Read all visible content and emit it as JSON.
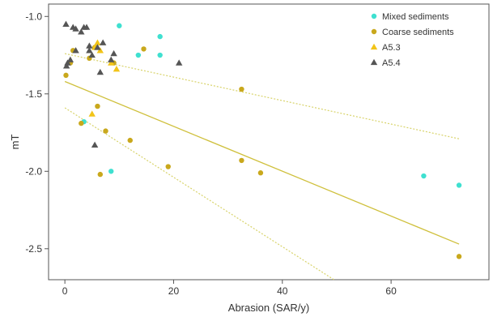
{
  "chart_data": {
    "type": "scatter",
    "title": "",
    "xlabel": "Abrasion (SAR/y)",
    "ylabel": "mT",
    "xlim": [
      -3,
      78
    ],
    "ylim": [
      -2.7,
      -0.92
    ],
    "x_ticks": [
      0,
      20,
      40,
      60
    ],
    "y_ticks": [
      -1.0,
      -1.5,
      -2.0,
      -2.5
    ],
    "x_tick_labels": [
      "0",
      "20",
      "40",
      "60"
    ],
    "y_tick_labels": [
      "-1.0",
      "-1.5",
      "-2.0",
      "-2.5"
    ],
    "grid": false,
    "legend_position": "top-right",
    "series": [
      {
        "name": "Mixed sediments",
        "marker": "circle",
        "color": "#3fe0d0",
        "points": [
          [
            10.0,
            -1.06
          ],
          [
            13.5,
            -1.25
          ],
          [
            17.5,
            -1.13
          ],
          [
            17.5,
            -1.25
          ],
          [
            3.5,
            -1.68
          ],
          [
            8.5,
            -2.0
          ],
          [
            66.0,
            -2.03
          ],
          [
            72.5,
            -2.09
          ]
        ]
      },
      {
        "name": "Coarse sediments",
        "marker": "circle",
        "color": "#c9a81c",
        "points": [
          [
            0.2,
            -1.38
          ],
          [
            1.0,
            -1.3
          ],
          [
            1.5,
            -1.22
          ],
          [
            3.0,
            -1.69
          ],
          [
            4.5,
            -1.27
          ],
          [
            5.5,
            -1.2
          ],
          [
            6.0,
            -1.58
          ],
          [
            6.5,
            -2.02
          ],
          [
            7.5,
            -1.74
          ],
          [
            9.0,
            -1.3
          ],
          [
            12.0,
            -1.8
          ],
          [
            14.5,
            -1.21
          ],
          [
            19.0,
            -1.97
          ],
          [
            32.5,
            -1.47
          ],
          [
            32.5,
            -1.93
          ],
          [
            36.0,
            -2.01
          ],
          [
            72.5,
            -2.55
          ]
        ]
      },
      {
        "name": "A5.3",
        "marker": "triangle",
        "color": "#f2c418",
        "points": [
          [
            5.0,
            -1.63
          ],
          [
            5.5,
            -1.2
          ],
          [
            6.0,
            -1.17
          ],
          [
            6.5,
            -1.22
          ],
          [
            8.5,
            -1.3
          ],
          [
            9.5,
            -1.34
          ]
        ]
      },
      {
        "name": "A5.4",
        "marker": "triangle",
        "color": "#555555",
        "points": [
          [
            0.2,
            -1.05
          ],
          [
            0.5,
            -1.3
          ],
          [
            0.3,
            -1.32
          ],
          [
            1.0,
            -1.28
          ],
          [
            1.5,
            -1.07
          ],
          [
            2.0,
            -1.08
          ],
          [
            3.0,
            -1.1
          ],
          [
            3.5,
            -1.07
          ],
          [
            4.0,
            -1.07
          ],
          [
            4.5,
            -1.19
          ],
          [
            4.5,
            -1.22
          ],
          [
            5.0,
            -1.25
          ],
          [
            5.5,
            -1.83
          ],
          [
            6.5,
            -1.36
          ],
          [
            7.0,
            -1.17
          ],
          [
            8.5,
            -1.28
          ],
          [
            9.0,
            -1.24
          ],
          [
            21.0,
            -1.3
          ],
          [
            2.0,
            -1.22
          ],
          [
            6.0,
            -1.2
          ]
        ]
      }
    ],
    "trend_lines": [
      {
        "color": "#d8d36a",
        "style": "dotted",
        "x": [
          0,
          72.5
        ],
        "y": [
          -1.24,
          -1.79
        ]
      },
      {
        "color": "#cfc03c",
        "style": "solid",
        "x": [
          0,
          72.5
        ],
        "y": [
          -1.42,
          -2.47
        ]
      },
      {
        "color": "#d8d36a",
        "style": "dotted",
        "x": [
          0,
          49.5
        ],
        "y": [
          -1.59,
          -2.7
        ]
      }
    ]
  }
}
